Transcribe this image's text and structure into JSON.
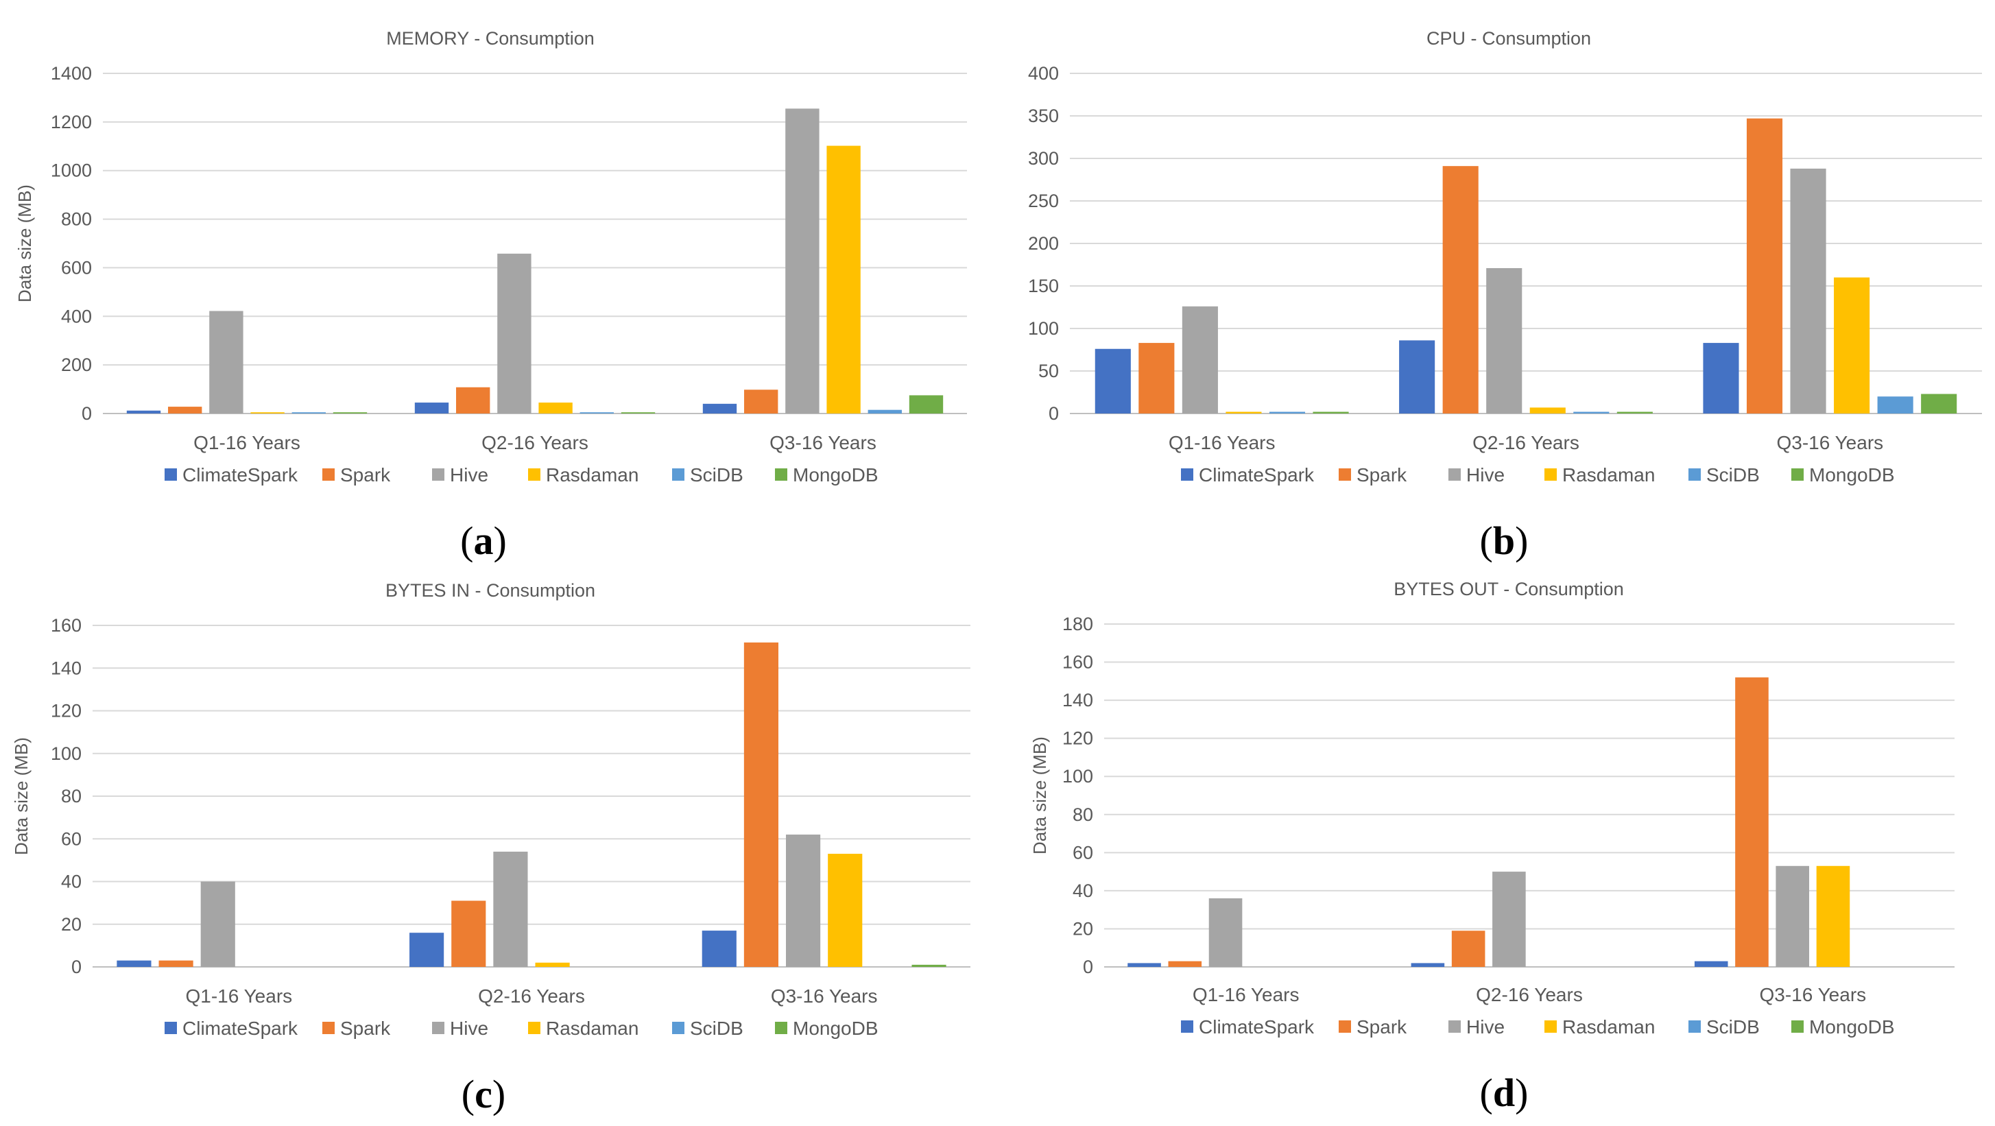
{
  "colors": {
    "ClimateSpark": "#4472C4",
    "Spark": "#ED7D31",
    "Hive": "#A5A5A5",
    "Rasdaman": "#FFC000",
    "SciDB": "#5B9BD5",
    "MongoDB": "#70AD47"
  },
  "chart_data": [
    {
      "type": "bar",
      "panel_label": "a",
      "title": "MEMORY - Consumption",
      "ylabel": "Data size (MB)",
      "xlabel": "",
      "ylim": [
        0,
        1400
      ],
      "yticks": [
        0,
        200,
        400,
        600,
        800,
        1000,
        1200,
        1400
      ],
      "categories": [
        "Q1-16 Years",
        "Q2-16 Years",
        "Q3-16 Years"
      ],
      "legend_position": "bottom",
      "grid": true,
      "series": [
        {
          "name": "ClimateSpark",
          "values": [
            12,
            45,
            40
          ]
        },
        {
          "name": "Spark",
          "values": [
            28,
            108,
            98
          ]
        },
        {
          "name": "Hive",
          "values": [
            422,
            658,
            1255
          ]
        },
        {
          "name": "Rasdaman",
          "values": [
            5,
            45,
            1102
          ]
        },
        {
          "name": "SciDB",
          "values": [
            5,
            5,
            15
          ]
        },
        {
          "name": "MongoDB",
          "values": [
            5,
            5,
            75
          ]
        }
      ]
    },
    {
      "type": "bar",
      "panel_label": "b",
      "title": "CPU - Consumption",
      "ylabel": "",
      "xlabel": "",
      "ylim": [
        0,
        400
      ],
      "yticks": [
        0,
        50,
        100,
        150,
        200,
        250,
        300,
        350,
        400
      ],
      "categories": [
        "Q1-16 Years",
        "Q2-16 Years",
        "Q3-16 Years"
      ],
      "legend_position": "bottom",
      "grid": true,
      "series": [
        {
          "name": "ClimateSpark",
          "values": [
            76,
            86,
            83
          ]
        },
        {
          "name": "Spark",
          "values": [
            83,
            291,
            347
          ]
        },
        {
          "name": "Hive",
          "values": [
            126,
            171,
            288
          ]
        },
        {
          "name": "Rasdaman",
          "values": [
            2,
            7,
            160
          ]
        },
        {
          "name": "SciDB",
          "values": [
            2,
            2,
            20
          ]
        },
        {
          "name": "MongoDB",
          "values": [
            2,
            2,
            23
          ]
        }
      ]
    },
    {
      "type": "bar",
      "panel_label": "c",
      "title": "BYTES IN - Consumption",
      "ylabel": "Data size (MB)",
      "xlabel": "",
      "ylim": [
        0,
        160
      ],
      "yticks": [
        0,
        20,
        40,
        60,
        80,
        100,
        120,
        140,
        160
      ],
      "categories": [
        "Q1-16 Years",
        "Q2-16 Years",
        "Q3-16 Years"
      ],
      "legend_position": "bottom",
      "grid": true,
      "series": [
        {
          "name": "ClimateSpark",
          "values": [
            3,
            16,
            17
          ]
        },
        {
          "name": "Spark",
          "values": [
            3,
            31,
            152
          ]
        },
        {
          "name": "Hive",
          "values": [
            40,
            54,
            62
          ]
        },
        {
          "name": "Rasdaman",
          "values": [
            0,
            2,
            53
          ]
        },
        {
          "name": "SciDB",
          "values": [
            0,
            0,
            0
          ]
        },
        {
          "name": "MongoDB",
          "values": [
            0,
            0,
            1
          ]
        }
      ]
    },
    {
      "type": "bar",
      "panel_label": "d",
      "title": "BYTES OUT - Consumption",
      "ylabel": "Data size (MB)",
      "xlabel": "",
      "ylim": [
        0,
        180
      ],
      "yticks": [
        0,
        20,
        40,
        60,
        80,
        100,
        120,
        140,
        160,
        180
      ],
      "categories": [
        "Q1-16 Years",
        "Q2-16 Years",
        "Q3-16 Years"
      ],
      "legend_position": "bottom",
      "grid": true,
      "series": [
        {
          "name": "ClimateSpark",
          "values": [
            2,
            2,
            3
          ]
        },
        {
          "name": "Spark",
          "values": [
            3,
            19,
            152
          ]
        },
        {
          "name": "Hive",
          "values": [
            36,
            50,
            53
          ]
        },
        {
          "name": "Rasdaman",
          "values": [
            0,
            0,
            53
          ]
        },
        {
          "name": "SciDB",
          "values": [
            0,
            0,
            0
          ]
        },
        {
          "name": "MongoDB",
          "values": [
            0,
            0,
            0
          ]
        }
      ]
    }
  ]
}
